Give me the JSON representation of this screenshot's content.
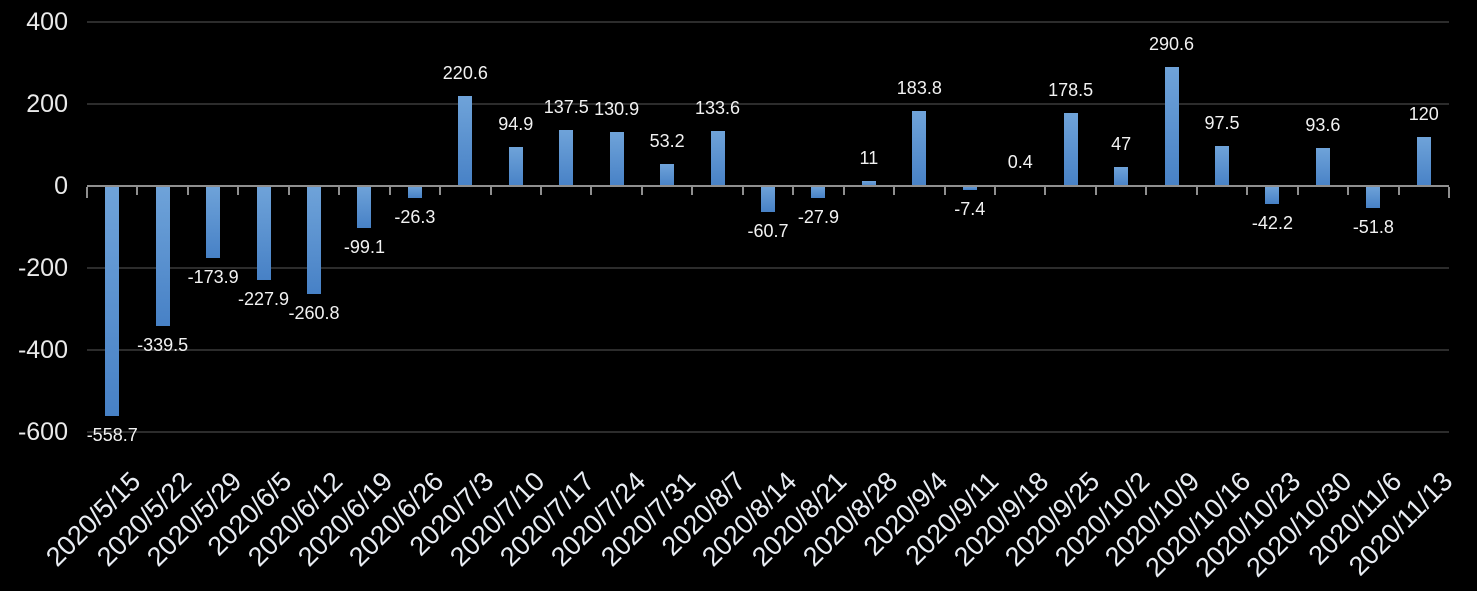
{
  "chart_data": {
    "type": "bar",
    "title": "",
    "xlabel": "",
    "ylabel": "",
    "categories": [
      "2020/5/15",
      "2020/5/22",
      "2020/5/29",
      "2020/6/5",
      "2020/6/12",
      "2020/6/19",
      "2020/6/26",
      "2020/7/3",
      "2020/7/10",
      "2020/7/17",
      "2020/7/24",
      "2020/7/31",
      "2020/8/7",
      "2020/8/14",
      "2020/8/21",
      "2020/8/28",
      "2020/9/4",
      "2020/9/11",
      "2020/9/18",
      "2020/9/25",
      "2020/10/2",
      "2020/10/9",
      "2020/10/16",
      "2020/10/23",
      "2020/10/30",
      "2020/11/6",
      "2020/11/13"
    ],
    "values": [
      -558.7,
      -339.5,
      -173.9,
      -227.9,
      -260.8,
      -99.1,
      -26.3,
      220.6,
      94.9,
      137.5,
      130.9,
      53.2,
      133.6,
      -60.7,
      -27.9,
      11,
      183.8,
      -7.4,
      0.4,
      178.5,
      47,
      290.6,
      97.5,
      -42.2,
      93.6,
      -51.8,
      120
    ],
    "data_labels": [
      "-558.7",
      "-339.5",
      "-173.9",
      "-227.9",
      "-260.8",
      "-99.1",
      "-26.3",
      "220.6",
      "94.9",
      "137.5",
      "130.9",
      "53.2",
      "133.6",
      "-60.7",
      "-27.9",
      "11",
      "183.8",
      "-7.4",
      "0.4",
      "178.5",
      "47",
      "290.6",
      "97.5",
      "-42.2",
      "93.6",
      "-51.8",
      "120"
    ],
    "ylim": [
      -600,
      400
    ],
    "yticks": [
      400,
      200,
      0,
      -200,
      -400,
      -600
    ],
    "ytick_labels": [
      "400",
      "200",
      "0",
      "-200",
      "-400",
      "-600"
    ],
    "grid": true,
    "legend": false,
    "colors": {
      "background": "#000000",
      "bar_gradient_top": "#6fa3d9",
      "bar_gradient_bottom": "#4781c6",
      "axis_line": "#8f8f8f",
      "gridline": "#2c2c2c",
      "ytick_text": "#eaeaea",
      "xtick_text": "#e8ecf2",
      "data_label_text": "#f2f2f2"
    }
  }
}
